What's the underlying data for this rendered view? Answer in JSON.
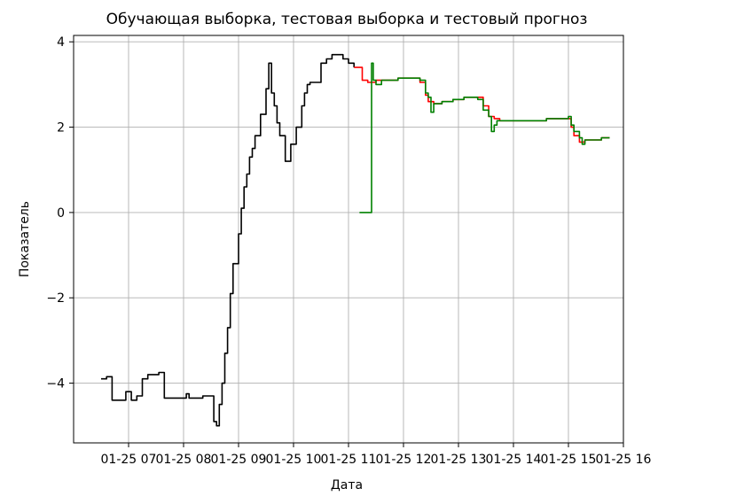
{
  "chart_data": {
    "type": "line",
    "title": "Обучающая выборка, тестовая выборка и тестовый прогноз",
    "xlabel": "Дата",
    "ylabel": "Показатель",
    "xlim": [
      0,
      10
    ],
    "ylim": [
      -5.4,
      4.15
    ],
    "grid": true,
    "x_tick_positions": [
      1,
      2,
      3,
      4,
      5,
      6,
      7,
      8,
      9,
      10
    ],
    "x_tick_labels": [
      "01-25 07",
      "01-25 08",
      "01-25 09",
      "01-25 10",
      "01-25 11",
      "01-25 12",
      "01-25 13",
      "01-25 14",
      "01-25 15",
      "01-25 16"
    ],
    "y_ticks": [
      4,
      2,
      0,
      -2,
      -4
    ],
    "y_tick_labels": [
      "4",
      "2",
      "0",
      "−2",
      "−4"
    ],
    "series": [
      {
        "color": "#000000",
        "x": [
          0.5,
          0.6,
          0.7,
          0.8,
          0.95,
          1.05,
          1.15,
          1.25,
          1.35,
          1.45,
          1.55,
          1.65,
          1.75,
          1.8,
          1.85,
          2.0,
          2.05,
          2.1,
          2.3,
          2.35,
          2.45,
          2.55,
          2.6,
          2.65,
          2.7,
          2.75,
          2.8,
          2.85,
          2.9,
          3.0,
          3.05,
          3.1,
          3.15,
          3.2,
          3.25,
          3.3,
          3.4,
          3.5,
          3.55,
          3.6,
          3.65,
          3.7,
          3.75,
          3.85,
          3.95,
          4.05,
          4.15,
          4.2,
          4.25,
          4.3,
          4.45,
          4.5,
          4.6,
          4.7,
          4.8,
          4.9,
          5.0,
          5.1
        ],
        "y": [
          -3.9,
          -3.85,
          -4.4,
          -4.4,
          -4.2,
          -4.4,
          -4.3,
          -3.9,
          -3.8,
          -3.8,
          -3.75,
          -4.35,
          -4.35,
          -4.35,
          -4.35,
          -4.35,
          -4.25,
          -4.35,
          -4.35,
          -4.3,
          -4.3,
          -4.9,
          -5.0,
          -4.5,
          -4.0,
          -3.3,
          -2.7,
          -1.9,
          -1.2,
          -0.5,
          0.1,
          0.6,
          0.9,
          1.3,
          1.5,
          1.8,
          2.3,
          2.9,
          3.5,
          2.8,
          2.5,
          2.1,
          1.8,
          1.2,
          1.6,
          2.0,
          2.5,
          2.8,
          3.0,
          3.05,
          3.05,
          3.5,
          3.6,
          3.7,
          3.7,
          3.6,
          3.5,
          3.4
        ]
      },
      {
        "color": "#ff0000",
        "x": [
          5.1,
          5.25,
          5.35,
          5.5,
          5.7,
          5.9,
          6.1,
          6.3,
          6.4,
          6.45,
          6.55,
          6.7,
          6.9,
          7.1,
          7.35,
          7.45,
          7.55,
          7.65,
          7.75,
          8.0,
          8.3,
          8.6,
          8.9,
          9.0,
          9.05,
          9.1,
          9.2,
          9.3,
          9.45,
          9.6,
          9.75
        ],
        "y": [
          3.4,
          3.1,
          3.05,
          3.1,
          3.1,
          3.15,
          3.15,
          3.05,
          2.75,
          2.6,
          2.55,
          2.6,
          2.65,
          2.7,
          2.7,
          2.5,
          2.25,
          2.2,
          2.15,
          2.15,
          2.15,
          2.2,
          2.2,
          2.2,
          2.0,
          1.8,
          1.65,
          1.7,
          1.7,
          1.75,
          1.75
        ]
      },
      {
        "color": "#008000",
        "x": [
          5.2,
          5.35,
          5.4,
          5.42,
          5.45,
          5.5,
          5.6,
          5.75,
          5.9,
          6.1,
          6.3,
          6.4,
          6.45,
          6.5,
          6.55,
          6.7,
          6.9,
          7.1,
          7.35,
          7.45,
          7.55,
          7.6,
          7.65,
          7.7,
          7.75,
          8.0,
          8.3,
          8.6,
          8.9,
          9.0,
          9.05,
          9.1,
          9.2,
          9.25,
          9.3,
          9.45,
          9.6,
          9.75
        ],
        "y": [
          0.0,
          0.0,
          0.0,
          3.5,
          3.1,
          3.0,
          3.1,
          3.1,
          3.15,
          3.15,
          3.1,
          2.8,
          2.7,
          2.35,
          2.55,
          2.6,
          2.65,
          2.7,
          2.65,
          2.4,
          2.25,
          1.9,
          2.05,
          2.15,
          2.15,
          2.15,
          2.15,
          2.2,
          2.2,
          2.25,
          2.05,
          1.9,
          1.75,
          1.6,
          1.7,
          1.7,
          1.75,
          1.75
        ]
      }
    ]
  }
}
